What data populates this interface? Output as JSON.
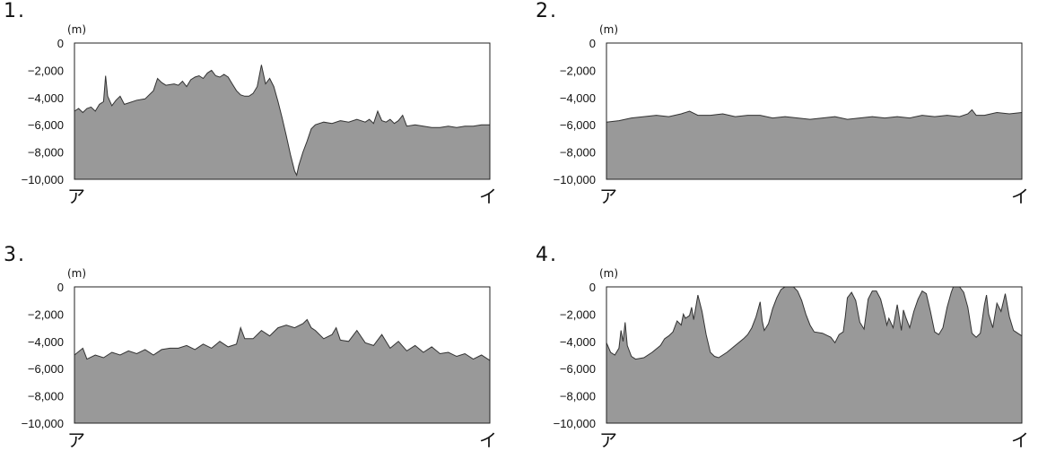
{
  "chart_data": [
    {
      "type": "area",
      "number": "1.",
      "unit": "(m)",
      "x_start_label": "ア",
      "x_end_label": "イ",
      "yticks": [
        "0",
        "−2,000",
        "−4,000",
        "−6,000",
        "−8,000",
        "−10,000"
      ],
      "ylim": [
        -10000,
        0
      ],
      "xlim": [
        0,
        1
      ],
      "points": [
        [
          0,
          -5000
        ],
        [
          0.01,
          -4800
        ],
        [
          0.02,
          -5100
        ],
        [
          0.03,
          -4800
        ],
        [
          0.04,
          -4700
        ],
        [
          0.05,
          -5000
        ],
        [
          0.06,
          -4500
        ],
        [
          0.07,
          -4300
        ],
        [
          0.075,
          -2400
        ],
        [
          0.08,
          -3900
        ],
        [
          0.09,
          -4600
        ],
        [
          0.1,
          -4200
        ],
        [
          0.11,
          -3900
        ],
        [
          0.12,
          -4500
        ],
        [
          0.13,
          -4400
        ],
        [
          0.15,
          -4200
        ],
        [
          0.17,
          -4100
        ],
        [
          0.19,
          -3500
        ],
        [
          0.2,
          -2600
        ],
        [
          0.21,
          -2900
        ],
        [
          0.22,
          -3100
        ],
        [
          0.24,
          -3000
        ],
        [
          0.25,
          -3100
        ],
        [
          0.26,
          -2800
        ],
        [
          0.27,
          -3200
        ],
        [
          0.28,
          -2700
        ],
        [
          0.29,
          -2500
        ],
        [
          0.3,
          -2400
        ],
        [
          0.31,
          -2600
        ],
        [
          0.32,
          -2200
        ],
        [
          0.33,
          -2000
        ],
        [
          0.34,
          -2400
        ],
        [
          0.35,
          -2500
        ],
        [
          0.36,
          -2300
        ],
        [
          0.37,
          -2500
        ],
        [
          0.38,
          -3000
        ],
        [
          0.39,
          -3500
        ],
        [
          0.4,
          -3800
        ],
        [
          0.41,
          -3900
        ],
        [
          0.42,
          -3900
        ],
        [
          0.43,
          -3700
        ],
        [
          0.44,
          -3200
        ],
        [
          0.45,
          -1600
        ],
        [
          0.46,
          -3000
        ],
        [
          0.47,
          -2600
        ],
        [
          0.48,
          -3200
        ],
        [
          0.49,
          -4300
        ],
        [
          0.5,
          -5500
        ],
        [
          0.51,
          -6800
        ],
        [
          0.52,
          -8200
        ],
        [
          0.53,
          -9400
        ],
        [
          0.535,
          -9700
        ],
        [
          0.54,
          -9000
        ],
        [
          0.55,
          -8000
        ],
        [
          0.56,
          -7200
        ],
        [
          0.57,
          -6300
        ],
        [
          0.58,
          -6000
        ],
        [
          0.6,
          -5800
        ],
        [
          0.62,
          -5900
        ],
        [
          0.64,
          -5700
        ],
        [
          0.66,
          -5800
        ],
        [
          0.68,
          -5600
        ],
        [
          0.7,
          -5800
        ],
        [
          0.71,
          -5600
        ],
        [
          0.72,
          -5900
        ],
        [
          0.73,
          -5000
        ],
        [
          0.74,
          -5700
        ],
        [
          0.75,
          -5800
        ],
        [
          0.76,
          -5600
        ],
        [
          0.77,
          -5900
        ],
        [
          0.78,
          -5700
        ],
        [
          0.79,
          -5300
        ],
        [
          0.8,
          -6100
        ],
        [
          0.82,
          -6000
        ],
        [
          0.84,
          -6100
        ],
        [
          0.86,
          -6200
        ],
        [
          0.88,
          -6200
        ],
        [
          0.9,
          -6100
        ],
        [
          0.92,
          -6200
        ],
        [
          0.94,
          -6100
        ],
        [
          0.96,
          -6100
        ],
        [
          0.98,
          -6000
        ],
        [
          1,
          -6000
        ]
      ]
    },
    {
      "type": "area",
      "number": "2.",
      "unit": "(m)",
      "x_start_label": "ア",
      "x_end_label": "イ",
      "yticks": [
        "0",
        "−2,000",
        "−4,000",
        "−6,000",
        "−8,000",
        "−10,000"
      ],
      "ylim": [
        -10000,
        0
      ],
      "xlim": [
        0,
        1
      ],
      "points": [
        [
          0,
          -5800
        ],
        [
          0.03,
          -5700
        ],
        [
          0.06,
          -5500
        ],
        [
          0.09,
          -5400
        ],
        [
          0.12,
          -5300
        ],
        [
          0.15,
          -5400
        ],
        [
          0.18,
          -5200
        ],
        [
          0.2,
          -5000
        ],
        [
          0.22,
          -5300
        ],
        [
          0.25,
          -5300
        ],
        [
          0.28,
          -5200
        ],
        [
          0.31,
          -5400
        ],
        [
          0.34,
          -5300
        ],
        [
          0.37,
          -5300
        ],
        [
          0.4,
          -5500
        ],
        [
          0.43,
          -5400
        ],
        [
          0.46,
          -5500
        ],
        [
          0.49,
          -5600
        ],
        [
          0.52,
          -5500
        ],
        [
          0.55,
          -5400
        ],
        [
          0.58,
          -5600
        ],
        [
          0.61,
          -5500
        ],
        [
          0.64,
          -5400
        ],
        [
          0.67,
          -5500
        ],
        [
          0.7,
          -5400
        ],
        [
          0.73,
          -5500
        ],
        [
          0.76,
          -5300
        ],
        [
          0.79,
          -5400
        ],
        [
          0.82,
          -5300
        ],
        [
          0.85,
          -5400
        ],
        [
          0.87,
          -5200
        ],
        [
          0.88,
          -4900
        ],
        [
          0.89,
          -5300
        ],
        [
          0.91,
          -5300
        ],
        [
          0.94,
          -5100
        ],
        [
          0.97,
          -5200
        ],
        [
          1,
          -5100
        ]
      ]
    },
    {
      "type": "area",
      "number": "3.",
      "unit": "(m)",
      "x_start_label": "ア",
      "x_end_label": "イ",
      "yticks": [
        "0",
        "−2,000",
        "−4,000",
        "−6,000",
        "−8,000",
        "−10,000"
      ],
      "ylim": [
        -10000,
        0
      ],
      "xlim": [
        0,
        1
      ],
      "points": [
        [
          0,
          -5000
        ],
        [
          0.02,
          -4500
        ],
        [
          0.03,
          -5300
        ],
        [
          0.05,
          -5000
        ],
        [
          0.07,
          -5200
        ],
        [
          0.09,
          -4800
        ],
        [
          0.11,
          -5000
        ],
        [
          0.13,
          -4700
        ],
        [
          0.15,
          -4900
        ],
        [
          0.17,
          -4600
        ],
        [
          0.19,
          -5000
        ],
        [
          0.21,
          -4600
        ],
        [
          0.23,
          -4500
        ],
        [
          0.25,
          -4500
        ],
        [
          0.27,
          -4300
        ],
        [
          0.29,
          -4600
        ],
        [
          0.31,
          -4200
        ],
        [
          0.33,
          -4500
        ],
        [
          0.35,
          -4000
        ],
        [
          0.37,
          -4400
        ],
        [
          0.39,
          -4200
        ],
        [
          0.4,
          -3000
        ],
        [
          0.41,
          -3800
        ],
        [
          0.43,
          -3800
        ],
        [
          0.45,
          -3200
        ],
        [
          0.47,
          -3600
        ],
        [
          0.49,
          -3000
        ],
        [
          0.51,
          -2800
        ],
        [
          0.53,
          -3000
        ],
        [
          0.55,
          -2700
        ],
        [
          0.56,
          -2400
        ],
        [
          0.57,
          -3000
        ],
        [
          0.58,
          -3200
        ],
        [
          0.6,
          -3800
        ],
        [
          0.62,
          -3500
        ],
        [
          0.63,
          -3000
        ],
        [
          0.64,
          -3900
        ],
        [
          0.66,
          -4000
        ],
        [
          0.68,
          -3200
        ],
        [
          0.7,
          -4100
        ],
        [
          0.72,
          -4300
        ],
        [
          0.74,
          -3500
        ],
        [
          0.76,
          -4500
        ],
        [
          0.78,
          -4000
        ],
        [
          0.8,
          -4700
        ],
        [
          0.82,
          -4300
        ],
        [
          0.84,
          -4800
        ],
        [
          0.86,
          -4400
        ],
        [
          0.88,
          -4900
        ],
        [
          0.9,
          -4800
        ],
        [
          0.92,
          -5100
        ],
        [
          0.94,
          -4900
        ],
        [
          0.96,
          -5300
        ],
        [
          0.98,
          -5000
        ],
        [
          1,
          -5400
        ]
      ]
    },
    {
      "type": "area",
      "number": "4.",
      "unit": "(m)",
      "x_start_label": "ア",
      "x_end_label": "イ",
      "yticks": [
        "0",
        "−2,000",
        "−4,000",
        "−6,000",
        "−8,000",
        "−10,000"
      ],
      "ylim": [
        -10000,
        0
      ],
      "xlim": [
        0,
        1
      ],
      "points": [
        [
          0,
          -4100
        ],
        [
          0.01,
          -4800
        ],
        [
          0.02,
          -5000
        ],
        [
          0.03,
          -4500
        ],
        [
          0.035,
          -3200
        ],
        [
          0.04,
          -4000
        ],
        [
          0.045,
          -2600
        ],
        [
          0.05,
          -4300
        ],
        [
          0.06,
          -5100
        ],
        [
          0.07,
          -5300
        ],
        [
          0.09,
          -5200
        ],
        [
          0.11,
          -4800
        ],
        [
          0.13,
          -4300
        ],
        [
          0.14,
          -3800
        ],
        [
          0.15,
          -3600
        ],
        [
          0.16,
          -3300
        ],
        [
          0.17,
          -2500
        ],
        [
          0.18,
          -2800
        ],
        [
          0.185,
          -2000
        ],
        [
          0.19,
          -2300
        ],
        [
          0.2,
          -2100
        ],
        [
          0.205,
          -1500
        ],
        [
          0.21,
          -2400
        ],
        [
          0.22,
          -600
        ],
        [
          0.23,
          -1800
        ],
        [
          0.24,
          -3500
        ],
        [
          0.25,
          -4800
        ],
        [
          0.26,
          -5100
        ],
        [
          0.27,
          -5200
        ],
        [
          0.29,
          -4800
        ],
        [
          0.31,
          -4300
        ],
        [
          0.33,
          -3800
        ],
        [
          0.34,
          -3500
        ],
        [
          0.35,
          -3000
        ],
        [
          0.36,
          -2200
        ],
        [
          0.37,
          -1100
        ],
        [
          0.375,
          -2500
        ],
        [
          0.38,
          -3200
        ],
        [
          0.39,
          -2700
        ],
        [
          0.4,
          -1600
        ],
        [
          0.41,
          -800
        ],
        [
          0.42,
          -200
        ],
        [
          0.43,
          0
        ],
        [
          0.44,
          0
        ],
        [
          0.45,
          0
        ],
        [
          0.46,
          -300
        ],
        [
          0.47,
          -1000
        ],
        [
          0.48,
          -2000
        ],
        [
          0.49,
          -2800
        ],
        [
          0.5,
          -3300
        ],
        [
          0.52,
          -3400
        ],
        [
          0.54,
          -3700
        ],
        [
          0.55,
          -4100
        ],
        [
          0.56,
          -3500
        ],
        [
          0.57,
          -3300
        ],
        [
          0.575,
          -2200
        ],
        [
          0.58,
          -800
        ],
        [
          0.59,
          -400
        ],
        [
          0.6,
          -1000
        ],
        [
          0.61,
          -2600
        ],
        [
          0.62,
          -3100
        ],
        [
          0.625,
          -2000
        ],
        [
          0.63,
          -900
        ],
        [
          0.64,
          -300
        ],
        [
          0.65,
          -300
        ],
        [
          0.66,
          -900
        ],
        [
          0.67,
          -2100
        ],
        [
          0.675,
          -2800
        ],
        [
          0.68,
          -2300
        ],
        [
          0.69,
          -3000
        ],
        [
          0.7,
          -1300
        ],
        [
          0.71,
          -3200
        ],
        [
          0.715,
          -1700
        ],
        [
          0.72,
          -2200
        ],
        [
          0.73,
          -3000
        ],
        [
          0.74,
          -1800
        ],
        [
          0.75,
          -900
        ],
        [
          0.76,
          -300
        ],
        [
          0.77,
          -500
        ],
        [
          0.78,
          -1800
        ],
        [
          0.79,
          -3300
        ],
        [
          0.8,
          -3500
        ],
        [
          0.81,
          -3000
        ],
        [
          0.82,
          -1500
        ],
        [
          0.83,
          -400
        ],
        [
          0.835,
          0
        ],
        [
          0.85,
          0
        ],
        [
          0.86,
          -400
        ],
        [
          0.87,
          -1500
        ],
        [
          0.88,
          -3400
        ],
        [
          0.89,
          -3700
        ],
        [
          0.9,
          -3400
        ],
        [
          0.91,
          -1300
        ],
        [
          0.915,
          -600
        ],
        [
          0.92,
          -2000
        ],
        [
          0.93,
          -3000
        ],
        [
          0.94,
          -1200
        ],
        [
          0.95,
          -1800
        ],
        [
          0.96,
          -500
        ],
        [
          0.97,
          -2200
        ],
        [
          0.98,
          -3200
        ],
        [
          0.99,
          -3400
        ],
        [
          1,
          -3600
        ]
      ]
    }
  ]
}
